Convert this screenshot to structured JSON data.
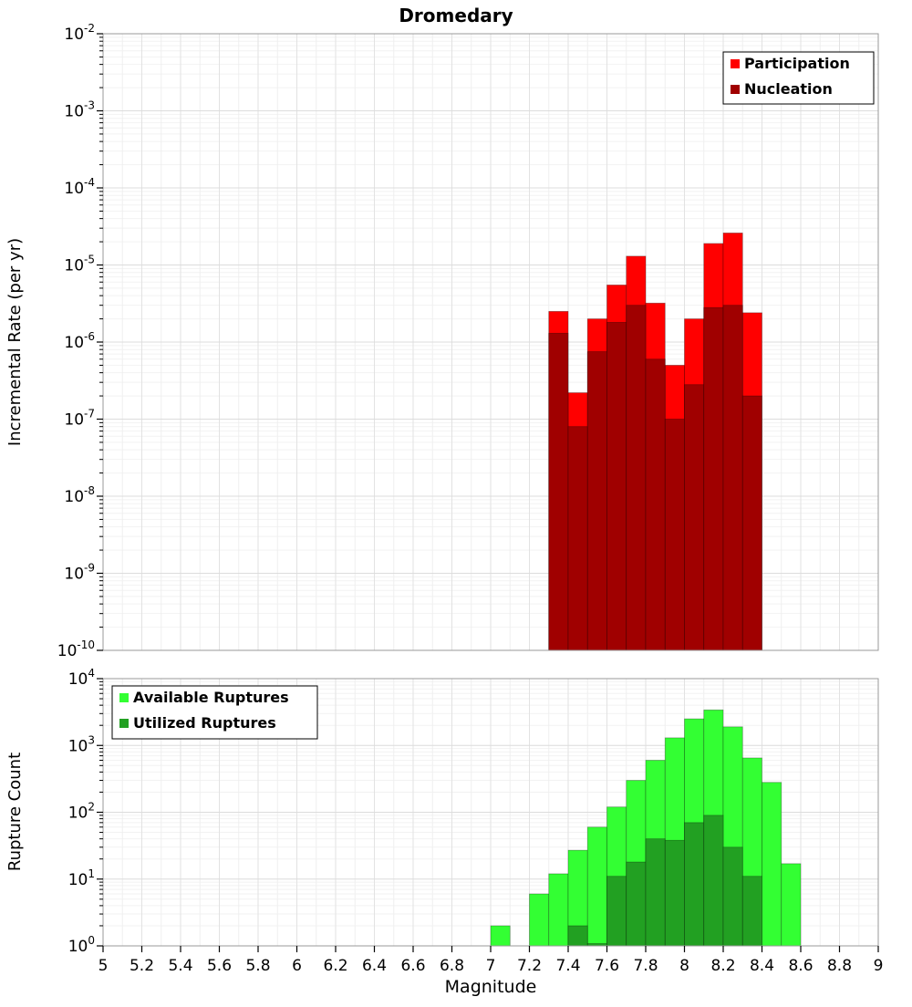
{
  "title": "Dromedary",
  "xlabel": "Magnitude",
  "x_ticks": [
    "5",
    "5.2",
    "5.4",
    "5.6",
    "5.8",
    "6",
    "6.2",
    "6.4",
    "6.6",
    "6.8",
    "7",
    "7.2",
    "7.4",
    "7.6",
    "7.8",
    "8",
    "8.2",
    "8.4",
    "8.6",
    "8.8",
    "9"
  ],
  "chart_data": [
    {
      "type": "bar",
      "panel": "incremental-rate",
      "ylabel": "Incremental Rate (per yr)",
      "yscale": "log",
      "ylim_exp": [
        -10,
        -2
      ],
      "xlim": [
        5,
        9
      ],
      "bin_width": 0.1,
      "grid": true,
      "legend": {
        "position": "top-right",
        "items": [
          {
            "label": "Participation",
            "color": "#FF0000"
          },
          {
            "label": "Nucleation",
            "color": "#A00000"
          }
        ]
      },
      "bins": [
        7.3,
        7.4,
        7.5,
        7.6,
        7.7,
        7.8,
        7.9,
        8.0,
        8.1,
        8.2,
        8.3
      ],
      "series": [
        {
          "name": "Participation",
          "color": "#FF0000",
          "values": [
            2.5e-06,
            2.2e-07,
            2e-06,
            5.5e-06,
            1.3e-05,
            3.2e-06,
            5e-07,
            2e-06,
            1.9e-05,
            2.6e-05,
            2.4e-06
          ]
        },
        {
          "name": "Nucleation",
          "color": "#A00000",
          "values": [
            1.3e-06,
            8e-08,
            7.5e-07,
            1.8e-06,
            3e-06,
            6e-07,
            1e-07,
            2.8e-07,
            2.8e-06,
            3e-06,
            2e-07
          ]
        }
      ]
    },
    {
      "type": "bar",
      "panel": "rupture-count",
      "ylabel": "Rupture Count",
      "yscale": "log",
      "ylim_exp": [
        0,
        4
      ],
      "xlim": [
        5,
        9
      ],
      "bin_width": 0.1,
      "grid": true,
      "legend": {
        "position": "top-left",
        "items": [
          {
            "label": "Available Ruptures",
            "color": "#33FF33"
          },
          {
            "label": "Utilized Ruptures",
            "color": "#22A022"
          }
        ]
      },
      "bins": [
        7.0,
        7.1,
        7.2,
        7.3,
        7.4,
        7.5,
        7.6,
        7.7,
        7.8,
        7.9,
        8.0,
        8.1,
        8.2,
        8.3,
        8.4,
        8.5
      ],
      "series": [
        {
          "name": "Available Ruptures",
          "color": "#33FF33",
          "values": [
            2,
            0,
            6,
            12,
            27,
            60,
            120,
            300,
            600,
            1300,
            2500,
            3400,
            1900,
            650,
            280,
            17
          ]
        },
        {
          "name": "Utilized Ruptures",
          "color": "#22A022",
          "values": [
            0,
            0,
            0,
            0,
            2,
            1,
            11,
            18,
            40,
            38,
            70,
            90,
            30,
            11,
            0,
            0
          ]
        }
      ]
    }
  ]
}
